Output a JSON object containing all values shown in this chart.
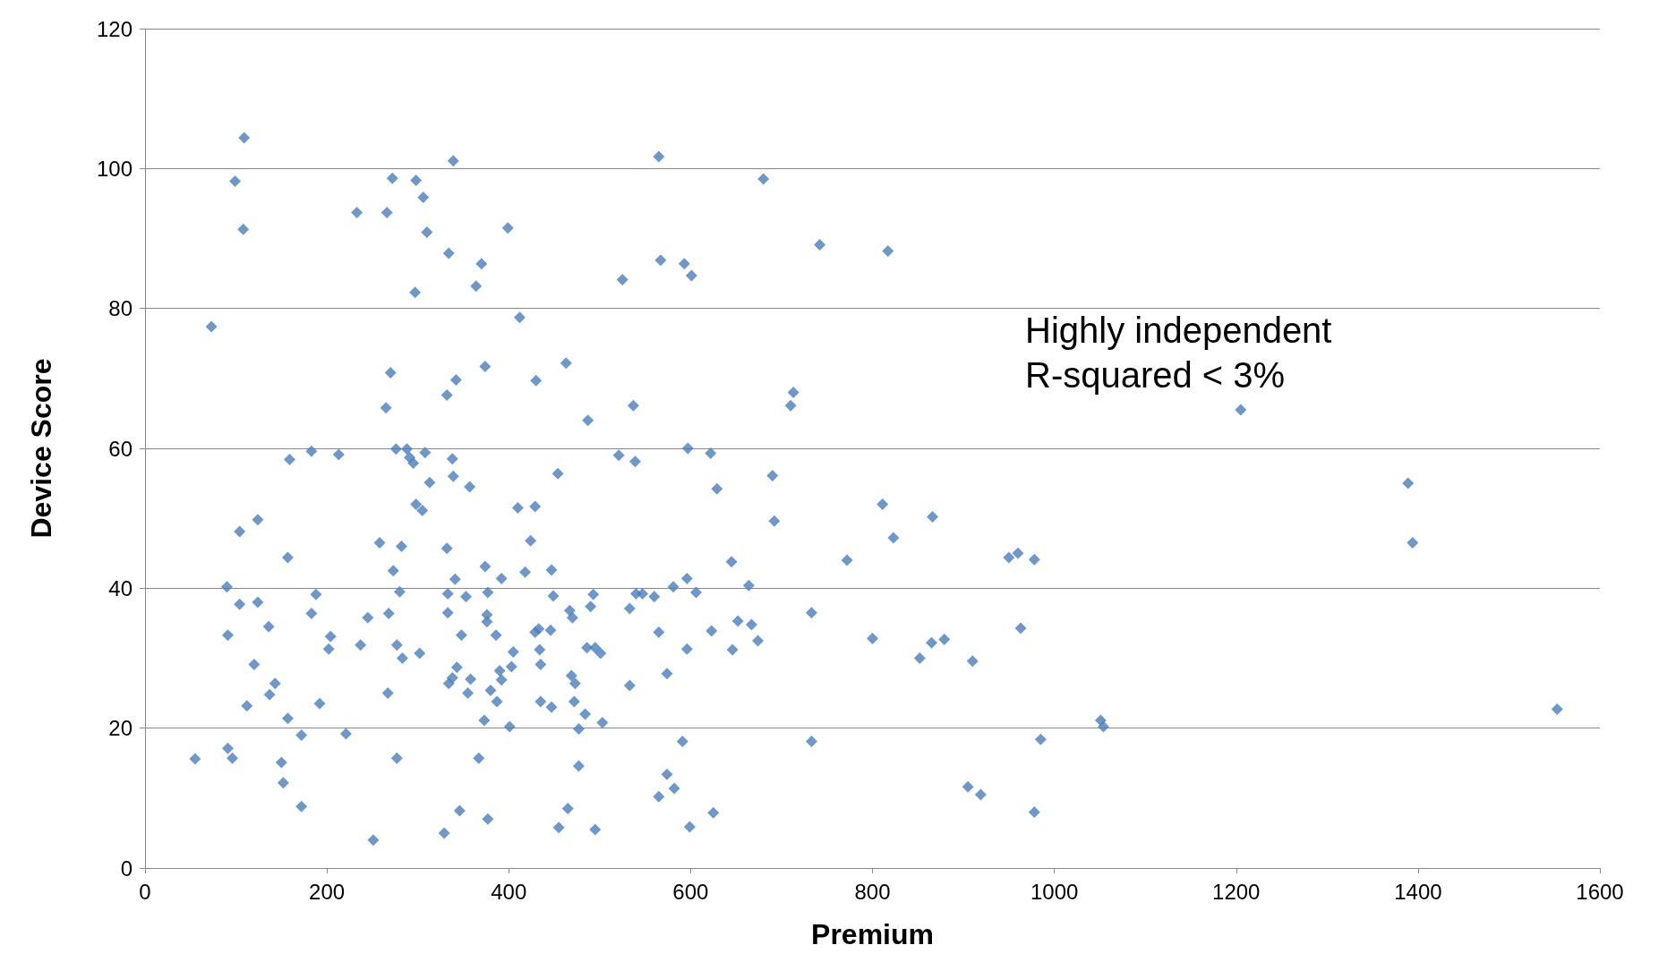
{
  "chart_data": {
    "type": "scatter",
    "xlabel": "Premium",
    "ylabel": "Device Score",
    "annotations": [
      "Highly independent\nR-squared < 3%"
    ],
    "xlim": [
      0,
      1600
    ],
    "xticks": [
      0,
      200,
      400,
      600,
      800,
      1000,
      1200,
      1400,
      1600
    ],
    "ylim": [
      0,
      120
    ],
    "yticks": [
      0,
      20,
      40,
      60,
      80,
      100,
      120
    ],
    "grid": "y",
    "marker": "diamond",
    "series": [
      {
        "color": "#4a7ebb",
        "x": [
          109,
          99,
          108,
          73,
          55,
          91,
          96,
          90,
          91,
          104,
          104,
          124,
          124,
          120,
          112,
          136,
          143,
          137,
          150,
          152,
          159,
          157,
          157,
          172,
          172,
          183,
          183,
          188,
          192,
          202,
          204,
          213,
          221,
          233,
          237,
          245,
          251,
          258,
          266,
          265,
          270,
          272,
          268,
          273,
          267,
          276,
          277,
          280,
          282,
          283,
          277,
          288,
          291,
          295,
          298,
          297,
          298,
          306,
          305,
          308,
          302,
          310,
          313,
          339,
          332,
          334,
          332,
          333,
          333,
          334,
          338,
          338,
          339,
          342,
          341,
          343,
          348,
          346,
          329,
          353,
          355,
          357,
          358,
          364,
          370,
          367,
          374,
          374,
          376,
          376,
          377,
          373,
          377,
          380,
          386,
          390,
          387,
          392,
          392,
          399,
          401,
          403,
          405,
          410,
          412,
          418,
          424,
          429,
          430,
          429,
          433,
          434,
          435,
          435,
          447,
          446,
          447,
          449,
          454,
          463,
          467,
          470,
          469,
          473,
          472,
          465,
          455,
          477,
          477,
          484,
          487,
          486,
          490,
          493,
          495,
          501,
          503,
          495,
          521,
          525,
          533,
          533,
          537,
          539,
          540,
          547,
          560,
          565,
          567,
          565,
          565,
          574,
          574,
          581,
          582,
          591,
          593,
          601,
          597,
          596,
          596,
          599,
          606,
          622,
          629,
          623,
          625,
          645,
          646,
          652,
          664,
          667,
          674,
          680,
          690,
          692,
          713,
          710,
          742,
          733,
          733,
          772,
          800,
          811,
          817,
          823,
          852,
          866,
          865,
          879,
          910,
          905,
          919,
          950,
          960,
          978,
          963,
          978,
          985,
          1051,
          1054,
          1205,
          1389,
          1394,
          1553
        ],
        "values": [
          104.4,
          98.2,
          91.3,
          77.4,
          15.6,
          17.1,
          15.7,
          40.2,
          33.3,
          48.1,
          37.7,
          49.8,
          38.0,
          29.1,
          23.2,
          34.5,
          26.4,
          24.8,
          15.1,
          12.2,
          58.4,
          44.4,
          21.4,
          19.0,
          8.8,
          59.6,
          36.4,
          39.1,
          23.5,
          31.3,
          33.1,
          59.1,
          19.2,
          93.7,
          31.9,
          35.8,
          4.0,
          46.5,
          93.7,
          65.8,
          70.8,
          98.6,
          36.4,
          42.5,
          25.0,
          59.9,
          31.9,
          39.5,
          46.0,
          30.0,
          15.7,
          59.9,
          58.7,
          57.9,
          98.3,
          82.3,
          52.0,
          95.9,
          51.1,
          59.4,
          30.7,
          90.9,
          55.1,
          101.1,
          67.6,
          87.9,
          45.7,
          39.2,
          36.5,
          26.4,
          27.2,
          58.5,
          56.0,
          69.8,
          41.3,
          28.7,
          33.3,
          8.2,
          5.0,
          38.8,
          25.0,
          54.5,
          27.0,
          83.2,
          86.4,
          15.7,
          71.7,
          43.1,
          36.2,
          35.2,
          39.4,
          21.1,
          7.0,
          25.4,
          33.3,
          28.2,
          23.8,
          41.4,
          26.9,
          91.5,
          20.2,
          28.8,
          30.9,
          51.5,
          78.7,
          42.3,
          46.8,
          51.7,
          69.7,
          33.7,
          34.2,
          31.2,
          29.1,
          23.8,
          23.0,
          34.0,
          42.6,
          38.9,
          56.4,
          72.2,
          36.8,
          35.8,
          27.5,
          26.4,
          23.8,
          8.5,
          5.8,
          19.9,
          14.6,
          22.0,
          64.0,
          31.5,
          37.4,
          39.1,
          31.5,
          30.7,
          20.8,
          5.5,
          59.0,
          84.1,
          37.1,
          26.1,
          66.1,
          58.1,
          39.2,
          39.2,
          38.8,
          101.7,
          86.9,
          33.7,
          10.2,
          13.4,
          27.8,
          40.2,
          11.4,
          18.1,
          86.4,
          84.7,
          60.0,
          41.4,
          31.3,
          5.9,
          39.4,
          59.3,
          54.2,
          33.9,
          7.9,
          43.8,
          31.2,
          35.3,
          40.4,
          34.8,
          32.5,
          98.5,
          56.1,
          49.6,
          68.0,
          66.1,
          89.1,
          36.5,
          18.1,
          44.0,
          32.8,
          52.0,
          88.2,
          47.2,
          30.0,
          50.2,
          32.2,
          32.7,
          29.6,
          11.6,
          10.5,
          44.4,
          45.0,
          44.1,
          34.3,
          8.0,
          18.4,
          21.1,
          20.2,
          65.5,
          55.0,
          46.5,
          22.7
        ]
      }
    ]
  }
}
